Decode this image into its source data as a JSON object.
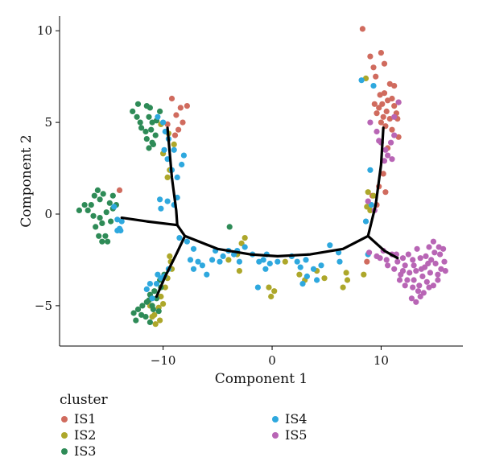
{
  "chart_data": {
    "type": "scatter",
    "title": "",
    "xlabel": "Component 1",
    "ylabel": "Component 2",
    "xlim": [
      -19.5,
      17.5
    ],
    "ylim": [
      -7.2,
      10.8
    ],
    "xticks": [
      -10,
      0,
      10
    ],
    "yticks": [
      -5,
      0,
      5,
      10
    ],
    "grid": false,
    "legend": {
      "title": "cluster",
      "placement": "bottom"
    },
    "series": [
      {
        "name": "IS1",
        "color": "#D06B5E",
        "points": [
          [
            -9.2,
            6.3
          ],
          [
            -8.4,
            5.8
          ],
          [
            -7.8,
            5.9
          ],
          [
            -8.8,
            5.4
          ],
          [
            -8.2,
            5.0
          ],
          [
            -8.6,
            4.6
          ],
          [
            -9.6,
            4.9
          ],
          [
            -8.9,
            4.3
          ],
          [
            -14.0,
            1.3
          ],
          [
            8.3,
            10.1
          ],
          [
            9.0,
            8.6
          ],
          [
            9.3,
            8.0
          ],
          [
            10.0,
            8.8
          ],
          [
            10.3,
            8.2
          ],
          [
            9.5,
            7.5
          ],
          [
            10.8,
            7.1
          ],
          [
            11.2,
            7.0
          ],
          [
            10.3,
            6.6
          ],
          [
            9.9,
            6.5
          ],
          [
            11.0,
            6.3
          ],
          [
            10.6,
            6.2
          ],
          [
            11.6,
            6.1
          ],
          [
            9.4,
            6.0
          ],
          [
            10.1,
            6.0
          ],
          [
            11.2,
            5.9
          ],
          [
            9.8,
            5.8
          ],
          [
            10.5,
            5.6
          ],
          [
            11.4,
            5.5
          ],
          [
            9.6,
            5.5
          ],
          [
            10.2,
            5.3
          ],
          [
            10.8,
            5.2
          ],
          [
            11.5,
            5.2
          ],
          [
            10.0,
            5.0
          ],
          [
            10.4,
            4.8
          ],
          [
            11.0,
            4.6
          ],
          [
            11.6,
            4.2
          ],
          [
            10.6,
            3.6
          ],
          [
            10.2,
            2.2
          ],
          [
            9.8,
            1.5
          ],
          [
            10.4,
            1.2
          ],
          [
            9.2,
            1.0
          ],
          [
            9.6,
            0.5
          ],
          [
            8.7,
            -2.6
          ]
        ]
      },
      {
        "name": "IS2",
        "color": "#ADA72A",
        "points": [
          [
            -10.2,
            4.9
          ],
          [
            -9.5,
            4.4
          ],
          [
            -9.0,
            3.8
          ],
          [
            -10.0,
            3.3
          ],
          [
            -9.4,
            2.4
          ],
          [
            -9.6,
            2.0
          ],
          [
            -9.4,
            -2.3
          ],
          [
            -9.3,
            -2.6
          ],
          [
            -9.2,
            -3.0
          ],
          [
            -9.6,
            -3.5
          ],
          [
            -9.8,
            -4.0
          ],
          [
            -10.2,
            -4.5
          ],
          [
            -10.0,
            -4.9
          ],
          [
            -10.4,
            -5.1
          ],
          [
            -10.8,
            -5.5
          ],
          [
            -10.3,
            -5.8
          ],
          [
            -10.7,
            -6.0
          ],
          [
            -11.0,
            -5.6
          ],
          [
            -11.2,
            -5.0
          ],
          [
            -4.0,
            -2.5
          ],
          [
            -3.2,
            -2.2
          ],
          [
            -3.0,
            -3.1
          ],
          [
            -2.8,
            -1.6
          ],
          [
            -2.5,
            -1.3
          ],
          [
            -0.3,
            -4.0
          ],
          [
            0.2,
            -4.2
          ],
          [
            -0.1,
            -4.5
          ],
          [
            1.2,
            -2.6
          ],
          [
            2.5,
            -3.3
          ],
          [
            3.0,
            -3.6
          ],
          [
            4.1,
            -3.1
          ],
          [
            4.8,
            -3.5
          ],
          [
            6.5,
            -4.0
          ],
          [
            6.8,
            -3.2
          ],
          [
            6.9,
            -3.6
          ],
          [
            8.4,
            -3.3
          ],
          [
            8.6,
            7.4
          ],
          [
            8.7,
            0.4
          ],
          [
            9.0,
            0.2
          ],
          [
            9.3,
            1.0
          ],
          [
            8.8,
            1.2
          ]
        ]
      },
      {
        "name": "IS3",
        "color": "#2E8B57",
        "points": [
          [
            -12.3,
            6.0
          ],
          [
            -11.5,
            5.9
          ],
          [
            -11.2,
            5.8
          ],
          [
            -10.3,
            5.6
          ],
          [
            -12.8,
            5.6
          ],
          [
            -12.4,
            5.3
          ],
          [
            -12.1,
            5.0
          ],
          [
            -11.3,
            5.3
          ],
          [
            -11.0,
            5.0
          ],
          [
            -10.6,
            5.1
          ],
          [
            -12.0,
            4.7
          ],
          [
            -11.6,
            4.5
          ],
          [
            -11.1,
            4.6
          ],
          [
            -11.5,
            4.1
          ],
          [
            -11.0,
            3.9
          ],
          [
            -10.7,
            4.3
          ],
          [
            -11.3,
            3.6
          ],
          [
            -10.9,
            3.8
          ],
          [
            -17.7,
            0.2
          ],
          [
            -17.2,
            0.5
          ],
          [
            -16.3,
            1.0
          ],
          [
            -16.0,
            1.3
          ],
          [
            -15.5,
            1.1
          ],
          [
            -15.8,
            0.8
          ],
          [
            -16.6,
            0.5
          ],
          [
            -16.9,
            0.2
          ],
          [
            -16.4,
            -0.1
          ],
          [
            -15.8,
            -0.2
          ],
          [
            -15.2,
            0.1
          ],
          [
            -14.6,
            0.3
          ],
          [
            -14.9,
            0.6
          ],
          [
            -15.6,
            -0.5
          ],
          [
            -16.2,
            -0.7
          ],
          [
            -15.9,
            -1.2
          ],
          [
            -15.3,
            -1.2
          ],
          [
            -15.1,
            -1.5
          ],
          [
            -15.6,
            -1.5
          ],
          [
            -14.8,
            -0.4
          ],
          [
            -14.3,
            0.5
          ],
          [
            -14.6,
            1.0
          ],
          [
            -3.9,
            -0.7
          ],
          [
            -9.9,
            -3.3
          ],
          [
            -10.3,
            -3.6
          ],
          [
            -10.2,
            -4.0
          ],
          [
            -10.8,
            -4.2
          ],
          [
            -11.2,
            -4.4
          ],
          [
            -11.5,
            -4.8
          ],
          [
            -11.9,
            -5.0
          ],
          [
            -12.3,
            -5.2
          ],
          [
            -12.7,
            -5.4
          ],
          [
            -11.0,
            -5.0
          ],
          [
            -10.6,
            -4.6
          ],
          [
            -10.4,
            -5.3
          ],
          [
            -11.6,
            -5.6
          ],
          [
            -11.2,
            -5.9
          ],
          [
            -12.0,
            -5.5
          ],
          [
            -12.5,
            -5.8
          ],
          [
            -10.9,
            -5.2
          ],
          [
            -11.3,
            -4.7
          ]
        ]
      },
      {
        "name": "IS4",
        "color": "#2EA8DE",
        "points": [
          [
            -10.5,
            5.3
          ],
          [
            -10.0,
            5.0
          ],
          [
            -9.8,
            4.5
          ],
          [
            -9.5,
            4.1
          ],
          [
            -9.9,
            3.5
          ],
          [
            -9.6,
            3.0
          ],
          [
            -9.2,
            2.4
          ],
          [
            -8.3,
            2.7
          ],
          [
            -8.1,
            3.2
          ],
          [
            -9.0,
            3.5
          ],
          [
            -8.7,
            2.0
          ],
          [
            -10.3,
            0.8
          ],
          [
            -10.2,
            0.3
          ],
          [
            -9.6,
            0.7
          ],
          [
            -9.0,
            0.5
          ],
          [
            -8.7,
            0.9
          ],
          [
            -14.2,
            -0.3
          ],
          [
            -13.8,
            -0.4
          ],
          [
            -14.5,
            0.4
          ],
          [
            -14.0,
            -0.8
          ],
          [
            -13.9,
            -0.9
          ],
          [
            -14.2,
            -0.9
          ],
          [
            -9.5,
            -3.0
          ],
          [
            -10.2,
            -3.5
          ],
          [
            -10.6,
            -3.8
          ],
          [
            -11.2,
            -3.8
          ],
          [
            -11.5,
            -4.1
          ],
          [
            -11.0,
            -4.6
          ],
          [
            -10.5,
            -3.3
          ],
          [
            -9.9,
            -3.4
          ],
          [
            -8.5,
            -1.3
          ],
          [
            -7.8,
            -1.5
          ],
          [
            -7.2,
            -1.9
          ],
          [
            -7.5,
            -2.5
          ],
          [
            -6.8,
            -2.6
          ],
          [
            -7.2,
            -3.0
          ],
          [
            -6.4,
            -2.8
          ],
          [
            -6.0,
            -3.3
          ],
          [
            -5.5,
            -2.5
          ],
          [
            -5.2,
            -2.0
          ],
          [
            -4.8,
            -2.6
          ],
          [
            -4.5,
            -2.3
          ],
          [
            -4.0,
            -2.0
          ],
          [
            -3.5,
            -2.2
          ],
          [
            -3.0,
            -2.6
          ],
          [
            -3.2,
            -2.0
          ],
          [
            -2.5,
            -1.8
          ],
          [
            -1.8,
            -2.2
          ],
          [
            -1.2,
            -2.6
          ],
          [
            -0.8,
            -2.5
          ],
          [
            -0.5,
            -2.2
          ],
          [
            -0.6,
            -3.0
          ],
          [
            -0.2,
            -2.7
          ],
          [
            0.5,
            -2.6
          ],
          [
            -1.3,
            -4.0
          ],
          [
            1.8,
            -2.3
          ],
          [
            2.3,
            -2.6
          ],
          [
            2.6,
            -2.9
          ],
          [
            3.1,
            -2.5
          ],
          [
            2.8,
            -3.8
          ],
          [
            3.2,
            -3.4
          ],
          [
            3.8,
            -3.0
          ],
          [
            4.1,
            -3.6
          ],
          [
            4.5,
            -2.8
          ],
          [
            5.3,
            -1.7
          ],
          [
            6.1,
            -2.1
          ],
          [
            6.2,
            -2.6
          ],
          [
            8.2,
            7.3
          ],
          [
            9.3,
            7.0
          ],
          [
            9.0,
            2.4
          ],
          [
            9.1,
            0.5
          ],
          [
            8.6,
            -0.4
          ],
          [
            8.8,
            -2.2
          ]
        ]
      },
      {
        "name": "IS5",
        "color": "#B865B5",
        "points": [
          [
            9.0,
            5.0
          ],
          [
            9.6,
            4.5
          ],
          [
            9.8,
            4.0
          ],
          [
            10.4,
            3.5
          ],
          [
            10.9,
            3.9
          ],
          [
            11.2,
            4.3
          ],
          [
            10.6,
            3.2
          ],
          [
            11.0,
            3.0
          ],
          [
            10.3,
            2.9
          ],
          [
            11.2,
            5.3
          ],
          [
            11.6,
            6.1
          ],
          [
            10.0,
            3.9
          ],
          [
            8.8,
            0.7
          ],
          [
            9.4,
            0.2
          ],
          [
            8.9,
            -2.1
          ],
          [
            9.6,
            -2.3
          ],
          [
            10.2,
            -2.0
          ],
          [
            10.5,
            -2.5
          ],
          [
            11.0,
            -2.2
          ],
          [
            11.5,
            -2.6
          ],
          [
            11.2,
            -3.0
          ],
          [
            11.8,
            -3.3
          ],
          [
            12.2,
            -2.8
          ],
          [
            12.6,
            -3.2
          ],
          [
            13.0,
            -3.6
          ],
          [
            13.2,
            -3.1
          ],
          [
            13.5,
            -3.9
          ],
          [
            13.8,
            -3.4
          ],
          [
            14.0,
            -2.9
          ],
          [
            14.2,
            -3.7
          ],
          [
            14.5,
            -3.2
          ],
          [
            14.8,
            -3.9
          ],
          [
            15.2,
            -3.3
          ],
          [
            14.1,
            -2.3
          ],
          [
            14.6,
            -2.5
          ],
          [
            15.0,
            -2.7
          ],
          [
            15.4,
            -2.2
          ],
          [
            15.8,
            -2.6
          ],
          [
            15.5,
            -3.0
          ],
          [
            15.9,
            -3.1
          ],
          [
            15.3,
            -1.8
          ],
          [
            14.8,
            -1.5
          ],
          [
            14.4,
            -1.8
          ],
          [
            13.6,
            -2.4
          ],
          [
            12.9,
            -2.5
          ],
          [
            13.3,
            -1.9
          ],
          [
            12.5,
            -2.2
          ],
          [
            12.0,
            -2.4
          ],
          [
            13.4,
            -4.2
          ],
          [
            12.9,
            -4.0
          ],
          [
            13.9,
            -4.3
          ],
          [
            14.4,
            -4.0
          ],
          [
            15.2,
            -3.6
          ],
          [
            12.4,
            -3.6
          ],
          [
            12.8,
            -4.6
          ],
          [
            13.2,
            -4.8
          ],
          [
            13.6,
            -4.5
          ],
          [
            12.2,
            -3.9
          ],
          [
            11.7,
            -3.6
          ],
          [
            13.0,
            -2.8
          ],
          [
            14.3,
            -2.7
          ],
          [
            15.7,
            -1.9
          ],
          [
            10.6,
            -2.8
          ],
          [
            12.0,
            -3.1
          ],
          [
            13.7,
            -3.0
          ],
          [
            11.4,
            -2.2
          ],
          [
            14.9,
            -2.1
          ],
          [
            9.9,
            -2.4
          ]
        ]
      }
    ],
    "trajectory": [
      [
        [
          -13.8,
          -0.2
        ],
        [
          -11.5,
          -0.4
        ],
        [
          -8.7,
          -0.6
        ],
        [
          -8.0,
          -1.2
        ]
      ],
      [
        [
          -9.6,
          4.7
        ],
        [
          -9.2,
          2.0
        ],
        [
          -8.8,
          0.2
        ],
        [
          -8.7,
          -0.6
        ]
      ],
      [
        [
          -8.0,
          -1.2
        ],
        [
          -8.8,
          -2.2
        ],
        [
          -9.8,
          -3.4
        ],
        [
          -10.6,
          -4.5
        ]
      ],
      [
        [
          -8.0,
          -1.2
        ],
        [
          -5.0,
          -1.9
        ],
        [
          -2.0,
          -2.2
        ],
        [
          0.5,
          -2.3
        ],
        [
          3.5,
          -2.2
        ],
        [
          6.5,
          -1.9
        ],
        [
          8.8,
          -1.2
        ]
      ],
      [
        [
          8.8,
          -1.2
        ],
        [
          9.5,
          0.5
        ],
        [
          10.0,
          2.7
        ],
        [
          10.2,
          4.7
        ]
      ],
      [
        [
          8.8,
          -1.2
        ],
        [
          10.3,
          -2.0
        ],
        [
          11.5,
          -2.4
        ]
      ]
    ]
  }
}
